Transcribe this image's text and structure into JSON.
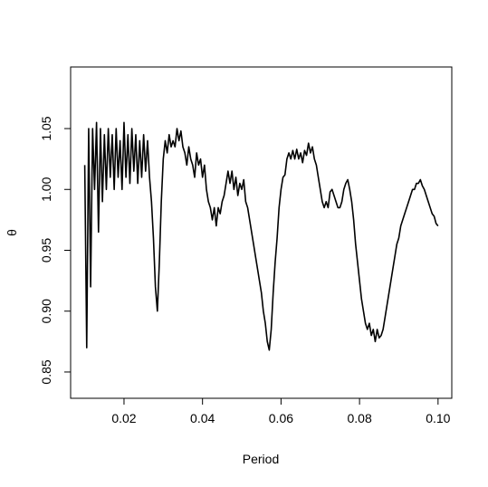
{
  "chart_data": {
    "type": "line",
    "xlabel": "Period",
    "ylabel": "θ",
    "x": [
      0.01,
      0.0105,
      0.011,
      0.0115,
      0.012,
      0.0125,
      0.013,
      0.0135,
      0.014,
      0.0145,
      0.015,
      0.0155,
      0.016,
      0.0165,
      0.017,
      0.0175,
      0.018,
      0.0185,
      0.019,
      0.0195,
      0.02,
      0.0205,
      0.021,
      0.0215,
      0.022,
      0.0225,
      0.023,
      0.0235,
      0.024,
      0.0245,
      0.025,
      0.0255,
      0.026,
      0.0265,
      0.027,
      0.0275,
      0.028,
      0.0285,
      0.029,
      0.0295,
      0.03,
      0.0305,
      0.031,
      0.0315,
      0.032,
      0.0325,
      0.033,
      0.0335,
      0.034,
      0.0345,
      0.035,
      0.0355,
      0.036,
      0.0365,
      0.037,
      0.0375,
      0.038,
      0.0385,
      0.039,
      0.0395,
      0.04,
      0.0405,
      0.041,
      0.0415,
      0.042,
      0.0425,
      0.043,
      0.0435,
      0.044,
      0.0445,
      0.045,
      0.0455,
      0.046,
      0.0465,
      0.047,
      0.0475,
      0.048,
      0.0485,
      0.049,
      0.0495,
      0.05,
      0.0505,
      0.051,
      0.0515,
      0.052,
      0.0525,
      0.053,
      0.0535,
      0.054,
      0.0545,
      0.055,
      0.0555,
      0.056,
      0.0565,
      0.057,
      0.0575,
      0.058,
      0.0585,
      0.059,
      0.0595,
      0.06,
      0.0605,
      0.061,
      0.0615,
      0.062,
      0.0625,
      0.063,
      0.0635,
      0.064,
      0.0645,
      0.065,
      0.0655,
      0.066,
      0.0665,
      0.067,
      0.0675,
      0.068,
      0.0685,
      0.069,
      0.0695,
      0.07,
      0.0705,
      0.071,
      0.0715,
      0.072,
      0.0725,
      0.073,
      0.0735,
      0.074,
      0.0745,
      0.075,
      0.0755,
      0.076,
      0.0765,
      0.077,
      0.0775,
      0.078,
      0.0785,
      0.079,
      0.0795,
      0.08,
      0.0805,
      0.081,
      0.0815,
      0.082,
      0.0825,
      0.083,
      0.0835,
      0.084,
      0.0845,
      0.085,
      0.0855,
      0.086,
      0.0865,
      0.087,
      0.0875,
      0.088,
      0.0885,
      0.089,
      0.0895,
      0.09,
      0.0905,
      0.091,
      0.0915,
      0.092,
      0.0925,
      0.093,
      0.0935,
      0.094,
      0.0945,
      0.095,
      0.0955,
      0.096,
      0.0965,
      0.097,
      0.0975,
      0.098,
      0.0985,
      0.099,
      0.0995,
      0.1
    ],
    "values": [
      1.02,
      0.87,
      1.05,
      0.92,
      1.05,
      1.0,
      1.055,
      0.965,
      1.05,
      0.99,
      1.045,
      1.0,
      1.05,
      1.01,
      1.045,
      1.0,
      1.05,
      1.01,
      1.04,
      1.0,
      1.055,
      1.01,
      1.045,
      1.005,
      1.05,
      1.015,
      1.045,
      1.005,
      1.04,
      1.01,
      1.045,
      1.015,
      1.04,
      1.01,
      0.99,
      0.96,
      0.92,
      0.9,
      0.94,
      0.99,
      1.025,
      1.04,
      1.03,
      1.045,
      1.035,
      1.04,
      1.035,
      1.05,
      1.04,
      1.048,
      1.035,
      1.03,
      1.02,
      1.035,
      1.025,
      1.02,
      1.01,
      1.03,
      1.02,
      1.025,
      1.01,
      1.02,
      1.0,
      0.99,
      0.985,
      0.975,
      0.985,
      0.97,
      0.985,
      0.98,
      0.99,
      0.995,
      1.005,
      1.015,
      1.005,
      1.015,
      1.0,
      1.01,
      0.995,
      1.005,
      1.0,
      1.008,
      0.99,
      0.985,
      0.975,
      0.965,
      0.955,
      0.945,
      0.935,
      0.925,
      0.915,
      0.9,
      0.89,
      0.875,
      0.868,
      0.885,
      0.915,
      0.94,
      0.96,
      0.985,
      1.0,
      1.01,
      1.012,
      1.025,
      1.03,
      1.025,
      1.032,
      1.025,
      1.033,
      1.025,
      1.03,
      1.022,
      1.032,
      1.028,
      1.038,
      1.03,
      1.035,
      1.025,
      1.02,
      1.01,
      1.0,
      0.99,
      0.985,
      0.99,
      0.985,
      0.998,
      1.0,
      0.995,
      0.99,
      0.985,
      0.985,
      0.99,
      1.0,
      1.005,
      1.008,
      1.0,
      0.99,
      0.975,
      0.955,
      0.94,
      0.925,
      0.91,
      0.9,
      0.89,
      0.885,
      0.89,
      0.88,
      0.885,
      0.875,
      0.885,
      0.878,
      0.88,
      0.885,
      0.895,
      0.905,
      0.915,
      0.925,
      0.935,
      0.945,
      0.955,
      0.96,
      0.97,
      0.975,
      0.98,
      0.985,
      0.99,
      0.995,
      1.0,
      1.0,
      1.005,
      1.005,
      1.008,
      1.003,
      1.0,
      0.995,
      0.99,
      0.985,
      0.98,
      0.978,
      0.972,
      0.97
    ],
    "color": "#000000",
    "xlim": [
      0.0064,
      0.1035
    ],
    "ylim": [
      0.8284,
      1.1006
    ],
    "xticks": [
      0.02,
      0.04,
      0.06,
      0.08,
      {
        "value": 0.1,
        "label": "0.10"
      }
    ],
    "yticks": [
      0.85,
      {
        "value": 0.9,
        "label": "0.90"
      },
      0.95,
      {
        "value": 1,
        "label": "1.00"
      },
      1.05
    ]
  }
}
